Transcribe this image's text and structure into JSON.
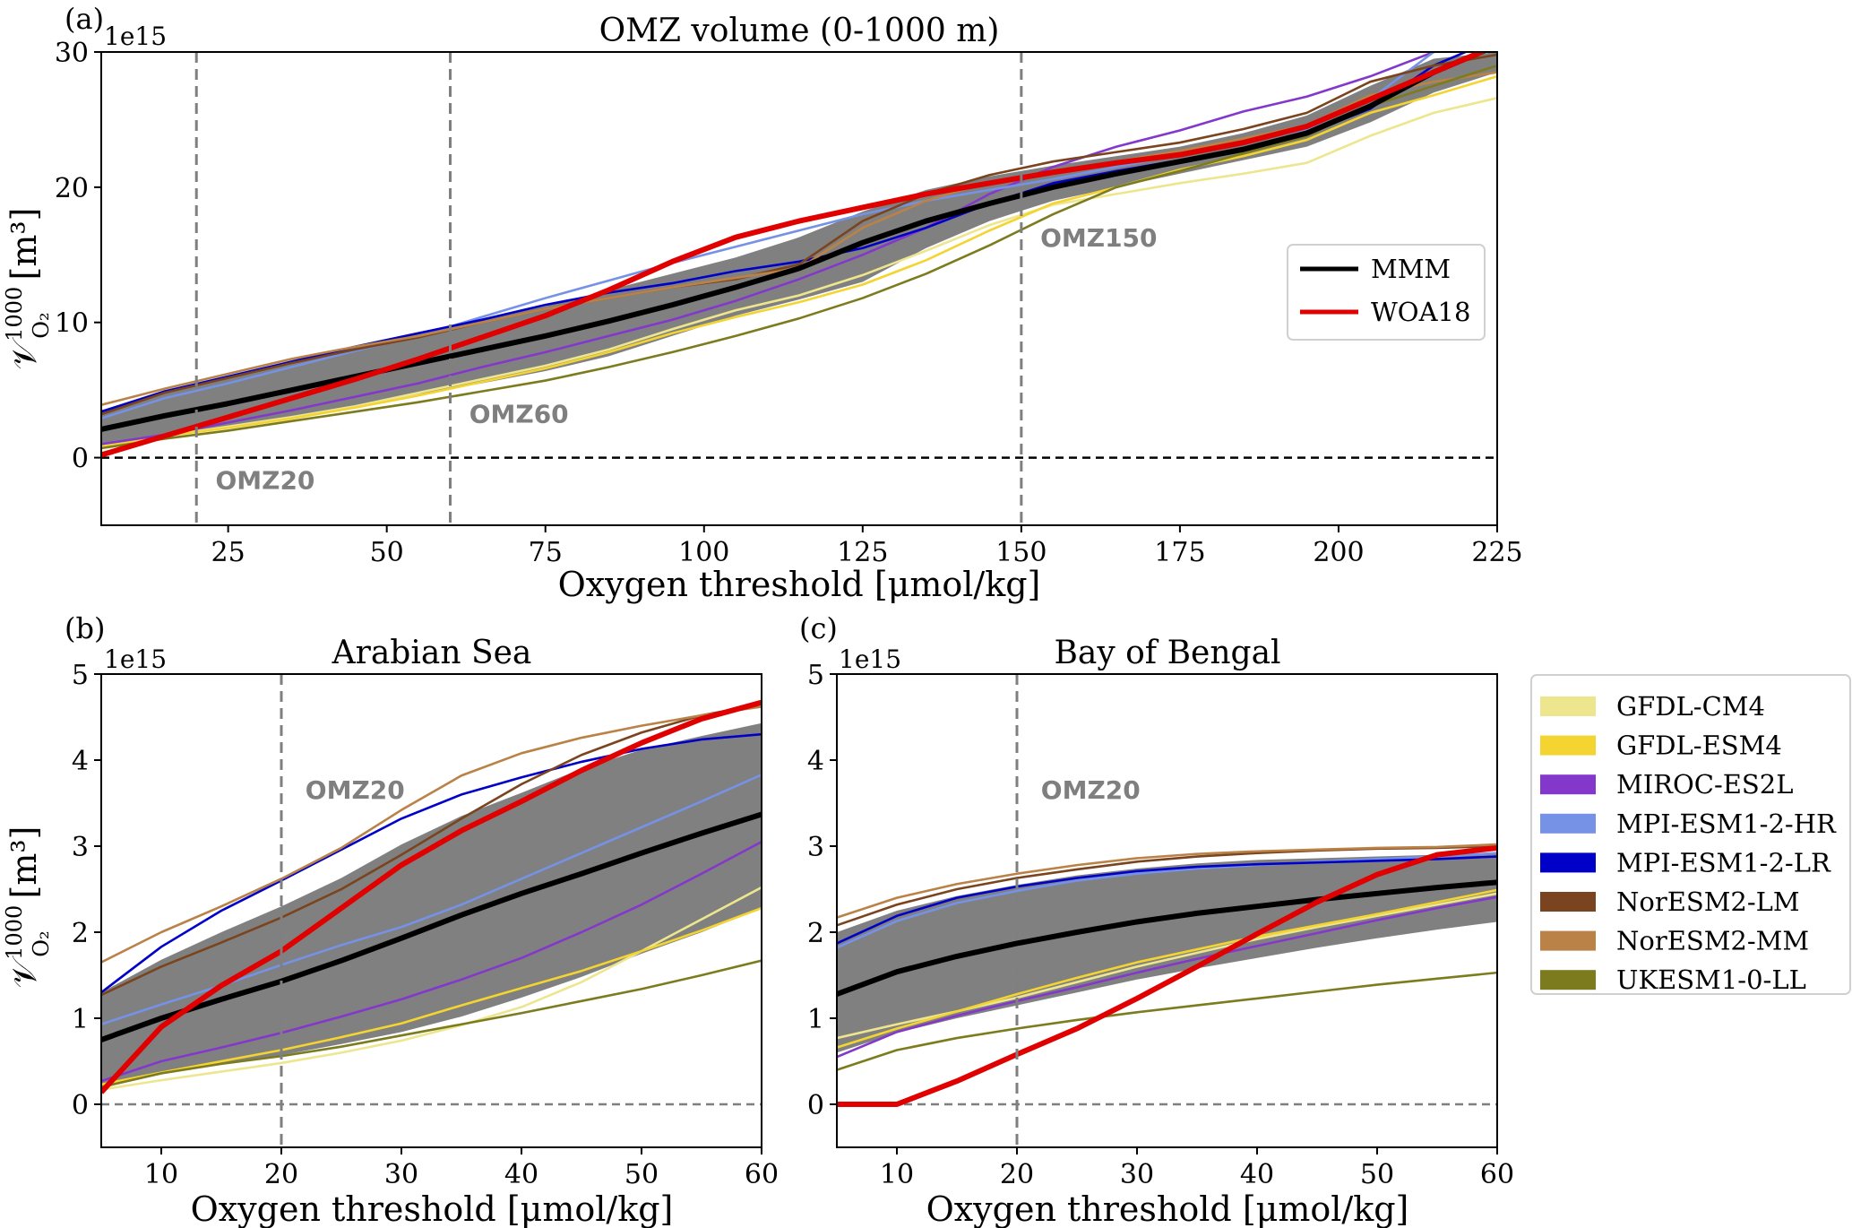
{
  "chart_data": [
    {
      "id": "a",
      "type": "line",
      "panel_label": "(a)",
      "title": "OMZ volume (0-1000 m)",
      "xlabel": "Oxygen threshold [μmol/kg]",
      "ylabel_main": "𝒱",
      "ylabel_sup": "1000",
      "ylabel_sub": "O₂",
      "ylabel_unit": "[m³]",
      "y_multiplier": "1e15",
      "xlim": [
        5,
        225
      ],
      "ylim": [
        -5,
        30
      ],
      "xticks": [
        25,
        50,
        75,
        100,
        125,
        150,
        175,
        200,
        225
      ],
      "yticks": [
        0,
        10,
        20,
        30
      ],
      "grid": false,
      "zero_line": {
        "y": 0,
        "style": "dashed",
        "color": "#000000"
      },
      "thresholds": [
        {
          "x": 20,
          "label": "OMZ20",
          "label_x": 23,
          "label_y": -2.3
        },
        {
          "x": 60,
          "label": "OMZ60",
          "label_x": 63,
          "label_y": 2.6
        },
        {
          "x": 150,
          "label": "OMZ150",
          "label_x": 153,
          "label_y": 15.6
        }
      ],
      "x": [
        5,
        15,
        25,
        35,
        45,
        55,
        65,
        75,
        85,
        95,
        105,
        115,
        125,
        135,
        145,
        155,
        165,
        175,
        185,
        195,
        205,
        215,
        225
      ],
      "spread": {
        "upper": [
          3.5,
          5.0,
          6.0,
          7.2,
          8.3,
          9.3,
          10.2,
          11.2,
          12.4,
          13.6,
          14.8,
          16.3,
          18.2,
          19.8,
          20.8,
          21.6,
          22.3,
          23.0,
          24.0,
          25.3,
          27.5,
          29.5,
          30.0
        ],
        "lower": [
          0.9,
          1.6,
          2.2,
          3.0,
          3.8,
          4.7,
          5.5,
          6.4,
          7.5,
          9.0,
          10.5,
          11.7,
          13.0,
          15.5,
          17.5,
          19.0,
          20.0,
          21.0,
          22.0,
          23.0,
          24.8,
          27.0,
          28.5
        ]
      },
      "series": [
        {
          "name": "GFDL-CM4",
          "values": [
            0.9,
            1.6,
            2.3,
            3.0,
            3.8,
            4.8,
            5.8,
            6.8,
            8.0,
            9.5,
            10.9,
            12.0,
            13.5,
            15.3,
            17.2,
            18.7,
            19.5,
            20.3,
            21.0,
            21.8,
            23.8,
            25.5,
            26.6
          ]
        },
        {
          "name": "GFDL-ESM4",
          "values": [
            0.8,
            1.6,
            2.2,
            2.9,
            3.7,
            4.6,
            5.6,
            6.6,
            7.8,
            9.2,
            10.4,
            11.5,
            12.8,
            14.6,
            16.8,
            18.8,
            20.0,
            21.3,
            22.3,
            23.5,
            25.5,
            26.8,
            28.2
          ]
        },
        {
          "name": "MIROC-ES2L",
          "values": [
            1.0,
            1.7,
            2.6,
            3.5,
            4.5,
            5.5,
            6.7,
            7.8,
            9.0,
            10.2,
            11.6,
            13.2,
            15.0,
            17.0,
            19.5,
            21.5,
            23.0,
            24.2,
            25.6,
            26.7,
            28.2,
            30.0,
            31.0
          ]
        },
        {
          "name": "MPI-ESM1-2-HR",
          "values": [
            2.9,
            4.4,
            5.5,
            6.7,
            7.9,
            9.0,
            10.4,
            11.8,
            13.1,
            14.4,
            15.6,
            16.8,
            18.0,
            19.0,
            19.8,
            20.6,
            21.5,
            22.4,
            23.3,
            24.3,
            26.5,
            30.0,
            31.0
          ]
        },
        {
          "name": "MPI-ESM1-2-LR",
          "values": [
            3.4,
            4.9,
            6.0,
            7.1,
            8.2,
            9.2,
            10.2,
            11.3,
            12.2,
            12.9,
            13.8,
            14.5,
            15.5,
            17.0,
            18.8,
            20.3,
            21.2,
            22.0,
            22.8,
            24.0,
            25.8,
            29.0,
            31.0
          ]
        },
        {
          "name": "NorESM2-LM",
          "values": [
            3.2,
            4.8,
            5.9,
            7.0,
            8.0,
            8.9,
            10.0,
            11.0,
            11.8,
            12.6,
            13.2,
            14.3,
            17.5,
            19.5,
            20.9,
            21.9,
            22.6,
            23.3,
            24.3,
            25.5,
            27.8,
            29.0,
            29.8
          ]
        },
        {
          "name": "NorESM2-MM",
          "values": [
            3.9,
            5.1,
            6.2,
            7.3,
            8.2,
            9.0,
            10.0,
            11.0,
            11.8,
            12.6,
            13.3,
            14.0,
            17.0,
            19.0,
            20.4,
            21.2,
            21.9,
            22.7,
            23.6,
            24.6,
            26.8,
            27.8,
            28.5
          ]
        },
        {
          "name": "UKESM1-0-LL",
          "values": [
            0.7,
            1.4,
            2.0,
            2.7,
            3.4,
            4.1,
            4.9,
            5.7,
            6.7,
            7.8,
            9.0,
            10.3,
            11.8,
            13.6,
            15.7,
            18.0,
            20.0,
            21.2,
            22.5,
            23.8,
            26.0,
            27.5,
            29.0
          ]
        },
        {
          "name": "MMM",
          "values": [
            2.1,
            3.1,
            4.0,
            5.0,
            6.0,
            7.0,
            8.0,
            9.0,
            10.1,
            11.3,
            12.6,
            14.0,
            15.9,
            17.5,
            18.8,
            20.0,
            21.0,
            21.9,
            22.8,
            24.0,
            26.0,
            28.5,
            30.5
          ]
        },
        {
          "name": "WOA18",
          "values": [
            0.2,
            1.6,
            3.0,
            4.4,
            5.8,
            7.3,
            8.9,
            10.5,
            12.4,
            14.5,
            16.3,
            17.5,
            18.5,
            19.5,
            20.3,
            21.1,
            21.8,
            22.4,
            23.3,
            24.5,
            26.5,
            28.5,
            30.5
          ]
        }
      ],
      "legend": {
        "placement": "right",
        "entries": [
          "MMM",
          "WOA18"
        ]
      }
    },
    {
      "id": "b",
      "type": "line",
      "panel_label": "(b)",
      "title": "Arabian Sea",
      "xlabel": "Oxygen threshold [μmol/kg]",
      "ylabel_main": "𝒱",
      "ylabel_sup": "1000",
      "ylabel_sub": "O₂",
      "ylabel_unit": "[m³]",
      "y_multiplier": "1e15",
      "xlim": [
        5,
        60
      ],
      "ylim": [
        -0.5,
        5
      ],
      "xticks": [
        10,
        20,
        30,
        40,
        50,
        60
      ],
      "yticks": [
        0,
        1,
        2,
        3,
        4,
        5
      ],
      "grid": false,
      "zero_line": {
        "y": 0,
        "style": "dashed",
        "color": "#7f7f7f"
      },
      "thresholds": [
        {
          "x": 20,
          "label": "OMZ20",
          "label_x": 22,
          "label_y": 3.55
        }
      ],
      "x": [
        5,
        10,
        15,
        20,
        25,
        30,
        35,
        40,
        45,
        50,
        55,
        60
      ],
      "spread": {
        "upper": [
          1.3,
          1.68,
          2.0,
          2.3,
          2.63,
          3.02,
          3.35,
          3.62,
          3.9,
          4.12,
          4.28,
          4.43
        ],
        "lower": [
          0.2,
          0.35,
          0.47,
          0.57,
          0.7,
          0.84,
          1.02,
          1.24,
          1.48,
          1.75,
          2.0,
          2.28
        ]
      },
      "series": [
        {
          "name": "GFDL-CM4",
          "values": [
            0.17,
            0.28,
            0.38,
            0.48,
            0.6,
            0.74,
            0.92,
            1.13,
            1.42,
            1.78,
            2.15,
            2.52
          ]
        },
        {
          "name": "GFDL-ESM4",
          "values": [
            0.23,
            0.37,
            0.5,
            0.63,
            0.78,
            0.94,
            1.15,
            1.35,
            1.55,
            1.78,
            2.02,
            2.28
          ]
        },
        {
          "name": "MIROC-ES2L",
          "values": [
            0.27,
            0.5,
            0.66,
            0.83,
            1.02,
            1.22,
            1.45,
            1.7,
            2.0,
            2.32,
            2.68,
            3.05
          ]
        },
        {
          "name": "MPI-ESM1-2-HR",
          "values": [
            0.93,
            1.16,
            1.38,
            1.62,
            1.85,
            2.06,
            2.32,
            2.62,
            2.92,
            3.22,
            3.52,
            3.83
          ]
        },
        {
          "name": "MPI-ESM1-2-LR",
          "values": [
            1.3,
            1.83,
            2.25,
            2.6,
            2.96,
            3.32,
            3.6,
            3.8,
            3.98,
            4.13,
            4.24,
            4.3
          ]
        },
        {
          "name": "NorESM2-LM",
          "values": [
            1.27,
            1.6,
            1.88,
            2.17,
            2.5,
            2.9,
            3.32,
            3.72,
            4.06,
            4.32,
            4.52,
            4.65
          ]
        },
        {
          "name": "NorESM2-MM",
          "values": [
            1.65,
            2.0,
            2.3,
            2.62,
            2.98,
            3.42,
            3.82,
            4.08,
            4.26,
            4.4,
            4.52,
            4.62
          ]
        },
        {
          "name": "UKESM1-0-LL",
          "values": [
            0.2,
            0.36,
            0.47,
            0.56,
            0.67,
            0.8,
            0.93,
            1.06,
            1.2,
            1.34,
            1.5,
            1.67
          ]
        },
        {
          "name": "MMM",
          "values": [
            0.75,
            1.0,
            1.22,
            1.43,
            1.67,
            1.93,
            2.2,
            2.45,
            2.68,
            2.92,
            3.15,
            3.37
          ]
        },
        {
          "name": "WOA18",
          "values": [
            0.14,
            0.9,
            1.38,
            1.78,
            2.28,
            2.78,
            3.18,
            3.52,
            3.88,
            4.2,
            4.48,
            4.67
          ]
        }
      ]
    },
    {
      "id": "c",
      "type": "line",
      "panel_label": "(c)",
      "title": "Bay of Bengal",
      "xlabel": "Oxygen threshold [μmol/kg]",
      "y_multiplier": "1e15",
      "xlim": [
        5,
        60
      ],
      "ylim": [
        -0.5,
        5
      ],
      "xticks": [
        10,
        20,
        30,
        40,
        50,
        60
      ],
      "yticks": [
        0,
        1,
        2,
        3,
        4,
        5
      ],
      "grid": false,
      "zero_line": {
        "y": 0,
        "style": "dashed",
        "color": "#7f7f7f"
      },
      "thresholds": [
        {
          "x": 20,
          "label": "OMZ20",
          "label_x": 22,
          "label_y": 3.55
        }
      ],
      "x": [
        5,
        10,
        15,
        20,
        25,
        30,
        35,
        40,
        45,
        50,
        55,
        60
      ],
      "spread": {
        "upper": [
          2.0,
          2.25,
          2.42,
          2.55,
          2.66,
          2.74,
          2.8,
          2.84,
          2.86,
          2.88,
          2.9,
          2.92
        ],
        "lower": [
          0.6,
          0.83,
          1.0,
          1.15,
          1.3,
          1.45,
          1.58,
          1.7,
          1.82,
          1.93,
          2.03,
          2.12
        ]
      },
      "series": [
        {
          "name": "GFDL-CM4",
          "values": [
            0.77,
            0.93,
            1.08,
            1.24,
            1.42,
            1.6,
            1.76,
            1.92,
            2.06,
            2.19,
            2.32,
            2.45
          ]
        },
        {
          "name": "GFDL-ESM4",
          "values": [
            0.66,
            0.88,
            1.08,
            1.28,
            1.47,
            1.65,
            1.8,
            1.95,
            2.08,
            2.21,
            2.35,
            2.49
          ]
        },
        {
          "name": "MIROC-ES2L",
          "values": [
            0.55,
            0.84,
            1.03,
            1.2,
            1.36,
            1.53,
            1.69,
            1.84,
            1.99,
            2.14,
            2.28,
            2.41
          ]
        },
        {
          "name": "MPI-ESM1-2-HR",
          "values": [
            1.82,
            2.13,
            2.34,
            2.48,
            2.6,
            2.68,
            2.74,
            2.78,
            2.82,
            2.85,
            2.88,
            2.92
          ]
        },
        {
          "name": "MPI-ESM1-2-LR",
          "values": [
            1.87,
            2.19,
            2.4,
            2.53,
            2.63,
            2.71,
            2.76,
            2.79,
            2.81,
            2.83,
            2.85,
            2.88
          ]
        },
        {
          "name": "NorESM2-LM",
          "values": [
            2.08,
            2.32,
            2.5,
            2.63,
            2.73,
            2.82,
            2.88,
            2.92,
            2.95,
            2.97,
            2.98,
            3.0
          ]
        },
        {
          "name": "NorESM2-MM",
          "values": [
            2.17,
            2.4,
            2.56,
            2.68,
            2.78,
            2.86,
            2.91,
            2.94,
            2.96,
            2.98,
            2.99,
            3.02
          ]
        },
        {
          "name": "UKESM1-0-LL",
          "values": [
            0.4,
            0.63,
            0.77,
            0.88,
            0.98,
            1.07,
            1.15,
            1.23,
            1.31,
            1.39,
            1.46,
            1.53
          ]
        },
        {
          "name": "MMM",
          "values": [
            1.28,
            1.54,
            1.72,
            1.87,
            2.0,
            2.12,
            2.22,
            2.3,
            2.38,
            2.45,
            2.52,
            2.58
          ]
        },
        {
          "name": "WOA18",
          "values": [
            0,
            0,
            0.27,
            0.58,
            0.88,
            1.23,
            1.6,
            1.98,
            2.35,
            2.67,
            2.9,
            2.98
          ]
        }
      ]
    }
  ],
  "series_styles": {
    "GFDL-CM4": "#ede68f",
    "GFDL-ESM4": "#f3d430",
    "MIROC-ES2L": "#8338cb",
    "MPI-ESM1-2-HR": "#7592e6",
    "MPI-ESM1-2-LR": "#0000c8",
    "NorESM2-LM": "#7a441e",
    "NorESM2-MM": "#ba8247",
    "UKESM1-0-LL": "#7c7c1e",
    "MMM": "#000000",
    "WOA18": "#e00000",
    "spread": "#808080",
    "threshold_line": "#7f7f7f"
  },
  "model_legend": {
    "placement": "right",
    "entries": [
      "GFDL-CM4",
      "GFDL-ESM4",
      "MIROC-ES2L",
      "MPI-ESM1-2-HR",
      "MPI-ESM1-2-LR",
      "NorESM2-LM",
      "NorESM2-MM",
      "UKESM1-0-LL"
    ]
  },
  "obs_legend": {
    "entries": [
      "MMM",
      "WOA18"
    ]
  }
}
